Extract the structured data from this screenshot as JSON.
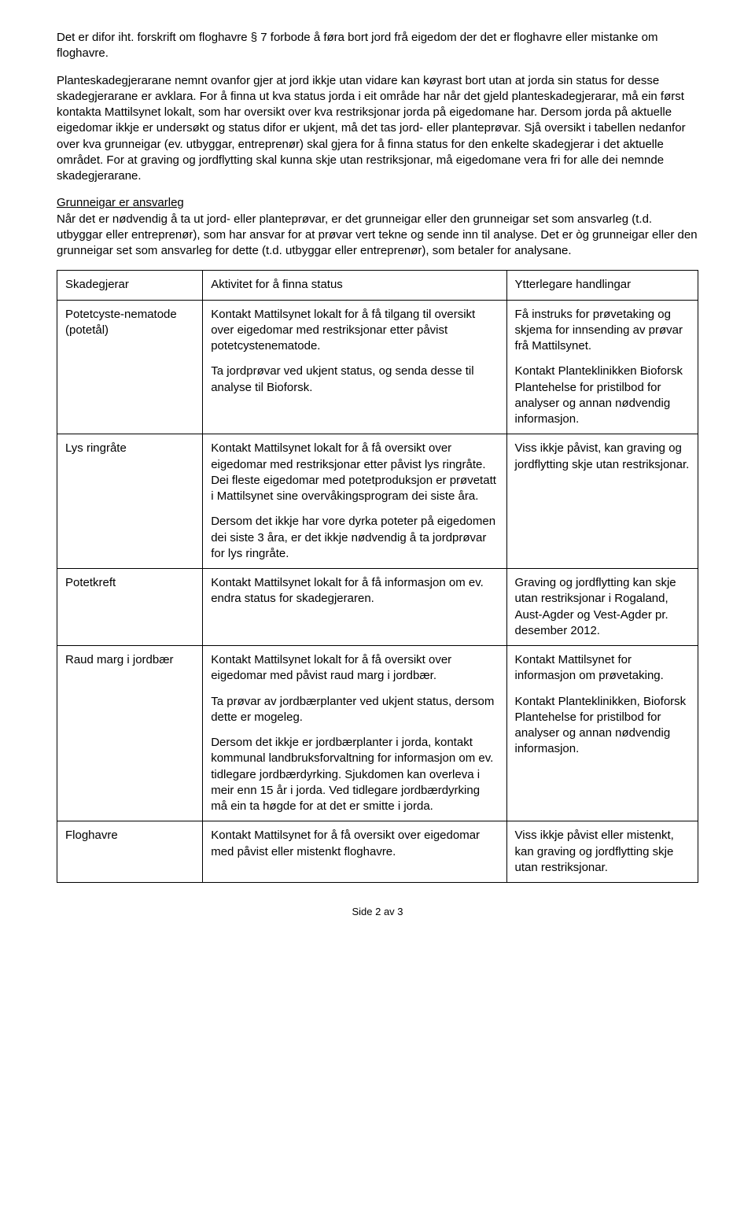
{
  "para1": "Det er difor iht. forskrift om floghavre § 7 forbode å føra bort jord frå eigedom der det er floghavre eller mistanke om floghavre.",
  "para2": "Planteskadegjerarane nemnt ovanfor gjer at jord ikkje utan vidare kan køyrast bort utan at jorda sin status for desse skadegjerarane er avklara. For å finna ut kva status jorda i eit område har når det gjeld planteskadegjerarar, må ein først kontakta Mattilsynet lokalt, som har oversikt over kva restriksjonar jorda på eigedomane har. Dersom jorda på aktuelle eigedomar ikkje er undersøkt og status difor er ukjent, må det tas jord- eller planteprøvar. Sjå oversikt i tabellen nedanfor over kva grunneigar (ev. utbyggar, entreprenør) skal gjera for å finna status for den enkelte skadegjerar i det aktuelle området. For at graving og jordflytting skal kunna skje utan restriksjonar, må eigedomane vera fri for alle dei nemnde skadegjerarane.",
  "section_heading": "Grunneigar er ansvarleg",
  "para3": "Når det er nødvendig å ta ut jord- eller planteprøvar, er det grunneigar eller den grunneigar set som ansvarleg (t.d. utbyggar eller entreprenør), som har ansvar for at prøvar vert tekne og sende inn til analyse. Det er òg grunneigar eller den grunneigar set som ansvarleg for dette (t.d. utbyggar eller entreprenør), som betaler for analysane.",
  "table": {
    "header": {
      "c1": "Skadegjerar",
      "c2": "Aktivitet for å finna status",
      "c3": "Ytterlegare handlingar"
    },
    "rows": [
      {
        "c1": "Potetcyste-nematode (potetål)",
        "c2a": "Kontakt Mattilsynet lokalt for å få tilgang til oversikt over eigedomar med restriksjonar etter påvist potetcystenematode.",
        "c2b": "Ta jordprøvar ved ukjent status, og senda desse til analyse til Bioforsk.",
        "c3a": "Få instruks for prøvetaking og skjema for innsending av prøvar frå Mattilsynet.",
        "c3b": "Kontakt Planteklinikken Bioforsk Plantehelse for pristilbod for analyser og annan nødvendig informasjon."
      },
      {
        "c1": "Lys ringråte",
        "c2a": "Kontakt Mattilsynet lokalt for å få oversikt over eigedomar med restriksjonar etter påvist lys ringråte. Dei fleste eigedomar med potetproduksjon er  prøvetatt i Mattilsynet sine overvåkingsprogram dei siste åra.",
        "c2b": "Dersom det ikkje har vore dyrka poteter på eigedomen dei siste 3 åra, er det ikkje nødvendig å ta jordprøvar for lys ringråte.",
        "c3a": "Viss ikkje påvist, kan graving og jordflytting skje utan restriksjonar."
      },
      {
        "c1": "Potetkreft",
        "c2a": "Kontakt Mattilsynet lokalt for å få informasjon om ev. endra status for skadegjeraren.",
        "c3a": "Graving og jordflytting kan skje utan restriksjonar i Rogaland, Aust-Agder og Vest-Agder pr. desember 2012."
      },
      {
        "c1": "Raud marg i jordbær",
        "c2a": "Kontakt Mattilsynet lokalt for å få oversikt over eigedomar med påvist raud marg i jordbær.",
        "c2b": "Ta prøvar av jordbærplanter ved ukjent status, dersom dette er mogeleg.",
        "c2c": "Dersom det ikkje er jordbærplanter i jorda, kontakt kommunal landbruksforvaltning for informasjon om ev. tidlegare jordbærdyrking. Sjukdomen kan overleva i meir enn 15 år i jorda. Ved tidlegare jordbærdyrking må ein ta høgde for at det er smitte i jorda.",
        "c3a": "Kontakt Mattilsynet for informasjon om prøvetaking.",
        "c3b": "Kontakt Planteklinikken, Bioforsk Plantehelse for pristilbod for analyser og annan nødvendig informasjon."
      },
      {
        "c1": "Floghavre",
        "c2a": "Kontakt Mattilsynet for å få oversikt over eigedomar med påvist eller mistenkt floghavre.",
        "c3a": "Viss ikkje påvist eller mistenkt, kan graving og jordflytting skje utan restriksjonar."
      }
    ]
  },
  "footer": "Side 2 av 3"
}
